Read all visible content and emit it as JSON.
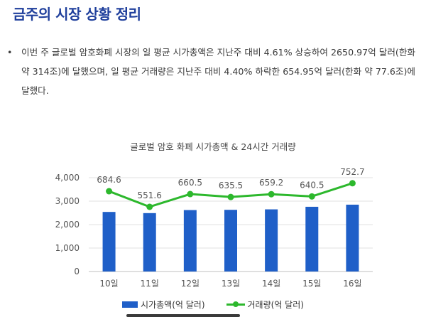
{
  "heading": "금주의 시장 상황 정리",
  "summary": {
    "bullet": "•",
    "text": "이번 주 글로벌 암호화폐 시장의 일 평균 시가총액은 지난주 대비 4.61% 상승하여 2650.97억 달러(한화 약 314조)에 달했으며, 일 평균 거래량은 지난주 대비 4.40% 하락한 654.95억 달러(한화 약 77.6조)에 달했다."
  },
  "chart_data": {
    "type": "bar",
    "title": "글로벌 암호 화폐 시가총액 & 24시간 거래량",
    "categories": [
      "10일",
      "11일",
      "12일",
      "13일",
      "14일",
      "15일",
      "16일"
    ],
    "ylim": [
      0,
      4000
    ],
    "yticks": [
      "4,000",
      "3,000",
      "2,000",
      "1,000",
      "0"
    ],
    "ytick_values": [
      4000,
      3000,
      2000,
      1000,
      0
    ],
    "grid": true,
    "legend_position": "bottom",
    "series": [
      {
        "name": "시가총액(억 달러)",
        "type": "bar",
        "color": "#1f5fc8",
        "values": [
          2540,
          2490,
          2620,
          2630,
          2650,
          2760,
          2850
        ]
      },
      {
        "name": "거래량(억 달러)",
        "type": "line",
        "color": "#2db82d",
        "values": [
          684.6,
          551.6,
          660.5,
          635.5,
          659.2,
          640.5,
          752.7
        ],
        "labels": [
          "684.6",
          "551.6",
          "660.5",
          "635.5",
          "659.2",
          "640.5",
          "752.7"
        ]
      }
    ]
  }
}
